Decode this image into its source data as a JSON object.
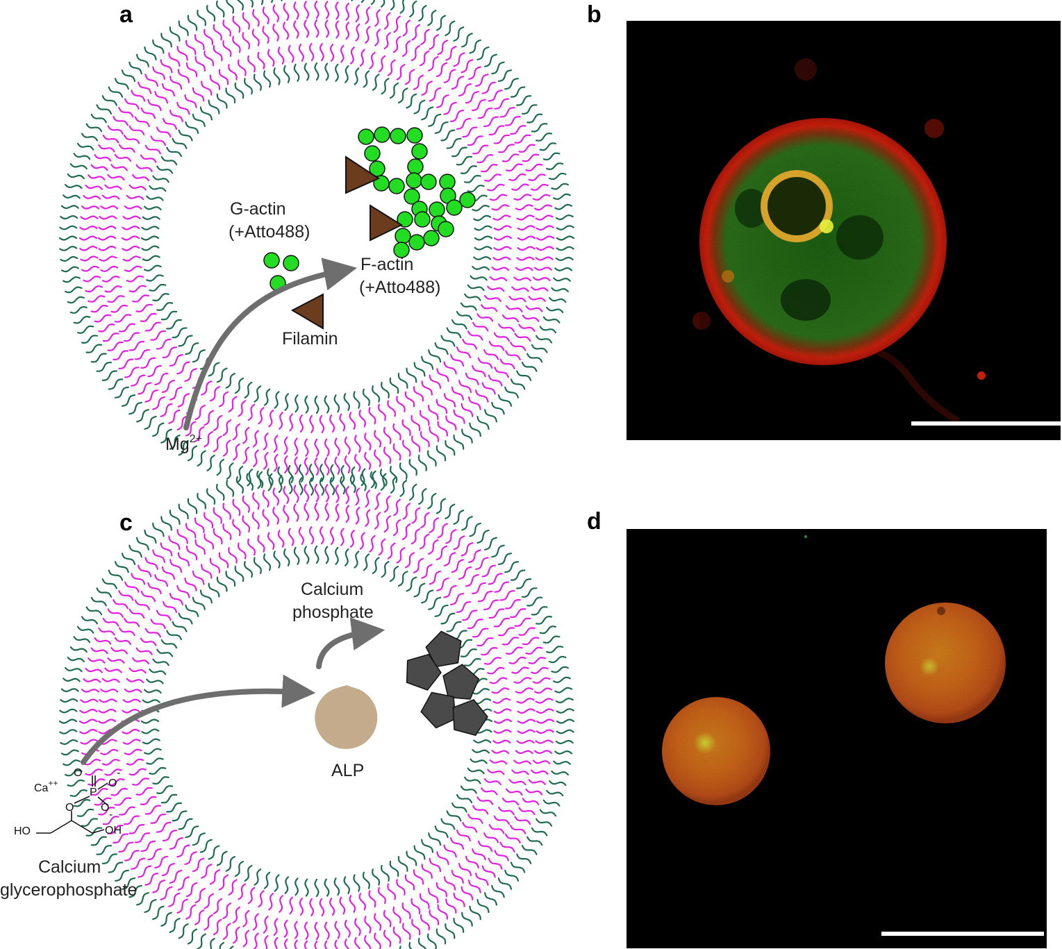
{
  "panels": {
    "a": {
      "letter": "a",
      "g_actin": [
        "G-actin",
        "(+Atto488)"
      ],
      "f_actin": [
        "F-actin",
        "(+Atto488)"
      ],
      "filamin": "Filamin",
      "mg_base": "Mg",
      "mg_sup": "2+"
    },
    "b": {
      "letter": "b"
    },
    "c": {
      "letter": "c",
      "calcium_phosphate": [
        "Calcium",
        "phosphate"
      ],
      "alp": "ALP",
      "calcium_glycerophosphate": [
        "Calcium",
        "glycerophosphate"
      ],
      "chem": {
        "ca": "Ca",
        "ca_charge": "++",
        "o": "O",
        "p": "P",
        "neg": "-",
        "ho": "HO",
        "oh": "OH"
      }
    },
    "d": {
      "letter": "d"
    }
  },
  "colors": {
    "outer_leaflet": "#1e6a52",
    "inner_leaflet": "#e21ee2",
    "actin": "#22dd22",
    "filamin": "#6b3d1e",
    "arrow": "#6e6e6e",
    "alp": "#c4ab8c",
    "mineral": "#4a4a4a",
    "micro_membrane": "#e0240e",
    "micro_lumen": "#2f7a1c",
    "scale_bar": "#ffffff"
  },
  "icons": [
    "vesicle-bilayer",
    "actin-bead",
    "filamin-triangle",
    "alp-enzyme",
    "mineral-pentagon",
    "scale-bar"
  ]
}
